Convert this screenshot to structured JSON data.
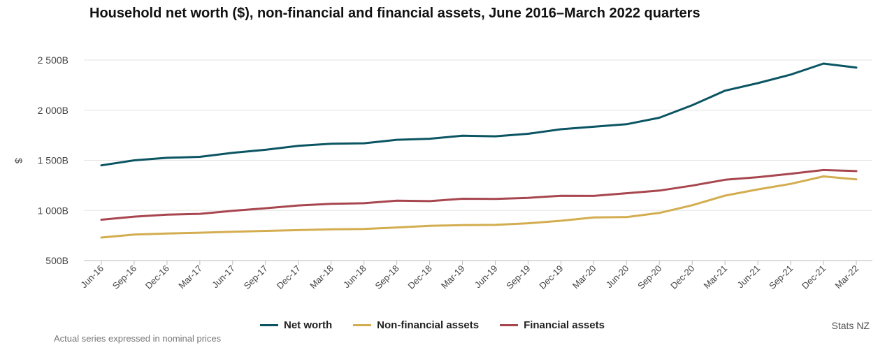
{
  "title": "Household net worth ($), non-financial and financial assets, June 2016–March 2022 quarters",
  "source": "Stats NZ",
  "footnote": "Actual series expressed in nominal prices",
  "colors": {
    "net_worth": "#0b5563",
    "non_financial": "#d3ad4f",
    "financial": "#a8464f",
    "grid": "#e4e4e4",
    "axis": "#bbbbbb"
  },
  "chart_data": {
    "type": "line",
    "title": "Household net worth ($), non-financial and financial assets, June 2016–March 2022 quarters",
    "xlabel": "",
    "ylabel": "$",
    "ylim": [
      500,
      2500
    ],
    "yticks": [
      500,
      1000,
      1500,
      2000,
      2500
    ],
    "ytick_labels": [
      "500B",
      "1 000B",
      "1 500B",
      "2 000B",
      "2 500B"
    ],
    "grid": true,
    "legend_position": "bottom",
    "categories": [
      "Jun-16",
      "Sep-16",
      "Dec-16",
      "Mar-17",
      "Jun-17",
      "Sep-17",
      "Dec-17",
      "Mar-18",
      "Jun-18",
      "Sep-18",
      "Dec-18",
      "Mar-19",
      "Jun-19",
      "Sep-19",
      "Dec-19",
      "Mar-20",
      "Jun-20",
      "Sep-20",
      "Dec-20",
      "Mar-21",
      "Jun-21",
      "Sep-21",
      "Dec-21",
      "Mar-22"
    ],
    "series": [
      {
        "name": "Net worth",
        "color_key": "net_worth",
        "values": [
          1450,
          1500,
          1525,
          1535,
          1575,
          1605,
          1645,
          1665,
          1670,
          1705,
          1715,
          1745,
          1740,
          1765,
          1810,
          1835,
          1860,
          1925,
          2050,
          2195,
          2270,
          2355,
          2465,
          2425
        ]
      },
      {
        "name": "Non-financial assets",
        "color_key": "non_financial",
        "values": [
          730,
          760,
          770,
          778,
          788,
          796,
          804,
          812,
          816,
          830,
          846,
          854,
          856,
          872,
          897,
          930,
          934,
          975,
          1052,
          1148,
          1210,
          1265,
          1340,
          1310
        ]
      },
      {
        "name": "Financial assets",
        "color_key": "financial",
        "values": [
          908,
          938,
          958,
          966,
          996,
          1022,
          1050,
          1066,
          1072,
          1097,
          1093,
          1117,
          1115,
          1126,
          1147,
          1145,
          1172,
          1198,
          1248,
          1306,
          1332,
          1366,
          1403,
          1393
        ]
      }
    ]
  }
}
